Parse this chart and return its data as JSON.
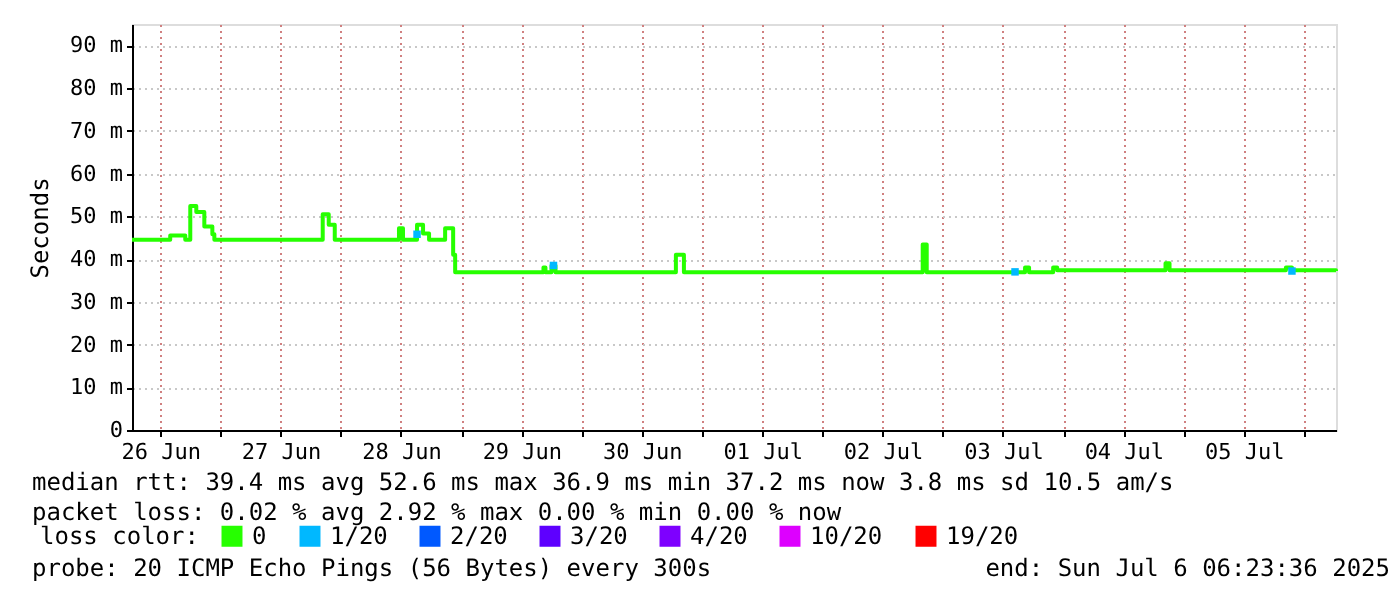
{
  "chart_data": {
    "type": "step",
    "ylabel": "Seconds",
    "xlim": [
      "2025-06-26T06:23",
      "2025-07-06T06:23"
    ],
    "xticks": [
      {
        "value": "2025-06-26T12:00",
        "label": "26 Jun"
      },
      {
        "value": "2025-06-27T00:00",
        "label": null
      },
      {
        "value": "2025-06-27T12:00",
        "label": "27 Jun"
      },
      {
        "value": "2025-06-28T00:00",
        "label": null
      },
      {
        "value": "2025-06-28T12:00",
        "label": "28 Jun"
      },
      {
        "value": "2025-06-29T00:00",
        "label": null
      },
      {
        "value": "2025-06-29T12:00",
        "label": "29 Jun"
      },
      {
        "value": "2025-06-30T00:00",
        "label": null
      },
      {
        "value": "2025-06-30T12:00",
        "label": "30 Jun"
      },
      {
        "value": "2025-07-01T00:00",
        "label": null
      },
      {
        "value": "2025-07-01T12:00",
        "label": "01 Jul"
      },
      {
        "value": "2025-07-02T00:00",
        "label": null
      },
      {
        "value": "2025-07-02T12:00",
        "label": "02 Jul"
      },
      {
        "value": "2025-07-03T00:00",
        "label": null
      },
      {
        "value": "2025-07-03T12:00",
        "label": "03 Jul"
      },
      {
        "value": "2025-07-04T00:00",
        "label": null
      },
      {
        "value": "2025-07-04T12:00",
        "label": "04 Jul"
      },
      {
        "value": "2025-07-05T00:00",
        "label": null
      },
      {
        "value": "2025-07-05T12:00",
        "label": "05 Jul"
      },
      {
        "value": "2025-07-06T00:00",
        "label": null
      }
    ],
    "ylim": [
      0,
      95
    ],
    "yticks": [
      0,
      {
        "value": 10,
        "label": "10 m"
      },
      {
        "value": 20,
        "label": "20 m"
      },
      {
        "value": 30,
        "label": "30 m"
      },
      {
        "value": 40,
        "label": "40 m"
      },
      {
        "value": 50,
        "label": "50 m"
      },
      {
        "value": 60,
        "label": "60 m"
      },
      {
        "value": 70,
        "label": "70 m"
      },
      {
        "value": 80,
        "label": "80 m"
      },
      {
        "value": 90,
        "label": "90 m"
      }
    ],
    "grid": true,
    "legend": "bottom",
    "legend_title": "loss color:",
    "series": [
      {
        "name": "0",
        "color": "#26ff00",
        "x": [
          "2025-06-26T06:23",
          "2025-06-26T14:00",
          "2025-06-26T17:00",
          "2025-06-26T18:00",
          "2025-06-26T19:12",
          "2025-06-26T20:48",
          "2025-06-26T22:24",
          "2025-06-26T22:48",
          "2025-06-27T20:24",
          "2025-06-27T21:36",
          "2025-06-27T22:48",
          "2025-06-28T11:36",
          "2025-06-28T12:24",
          "2025-06-28T15:12",
          "2025-06-28T16:24",
          "2025-06-28T17:36",
          "2025-06-28T20:48",
          "2025-06-28T22:24",
          "2025-06-28T22:48",
          "2025-06-29T16:24",
          "2025-06-29T16:48",
          "2025-06-29T18:00",
          "2025-06-29T18:48",
          "2025-06-30T18:48",
          "2025-06-30T20:24",
          "2025-07-02T20:00",
          "2025-07-02T20:48",
          "2025-07-03T16:24",
          "2025-07-03T17:12",
          "2025-07-03T22:00",
          "2025-07-03T22:48",
          "2025-07-04T20:24",
          "2025-07-04T21:12",
          "2025-07-05T20:24",
          "2025-07-05T21:36",
          "2025-07-06T06:23"
        ],
        "values": [
          44.5,
          45.5,
          44.5,
          52.4,
          51,
          47.6,
          45.8,
          44.5,
          50.5,
          48,
          44.5,
          47.2,
          44.5,
          48,
          46,
          44.5,
          47.2,
          41,
          36.9,
          38,
          36.9,
          38.5,
          36.9,
          41,
          36.9,
          43.4,
          36.9,
          38,
          36.9,
          38,
          37.4,
          39,
          37.4,
          38,
          37.4,
          37.2
        ]
      },
      {
        "name": "1/20",
        "color": "#00b8ff",
        "type": "scatter",
        "marker": "square",
        "x": [
          "2025-06-28T15:12",
          "2025-06-29T18:24",
          "2025-07-03T14:24",
          "2025-07-05T21:36"
        ],
        "values": [
          45.8,
          38.5,
          37,
          37.2
        ]
      },
      {
        "name": "2/20",
        "color": "#0059ff",
        "type": "scatter",
        "marker": "square"
      },
      {
        "name": "3/20",
        "color": "#5e00ff",
        "type": "scatter",
        "marker": "square"
      },
      {
        "name": "4/20",
        "color": "#7e00ff",
        "type": "scatter",
        "marker": "square"
      },
      {
        "name": "10/20",
        "color": "#dd00ff",
        "type": "scatter",
        "marker": "square"
      },
      {
        "name": "19/20",
        "color": "#ff0000",
        "type": "scatter",
        "marker": "square"
      }
    ],
    "annotations": [
      "median rtt:  39.4 ms avg  52.6 ms max  36.9 ms min  37.2 ms now  3.8 ms sd  10.5   am/s",
      "packet loss: 0.02 % avg  2.92 % max  0.00 % min  0.00 % now",
      "probe:       20 ICMP Echo Pings (56 Bytes) every 300s",
      "end: Sun Jul  6 06:23:36 2025"
    ]
  }
}
